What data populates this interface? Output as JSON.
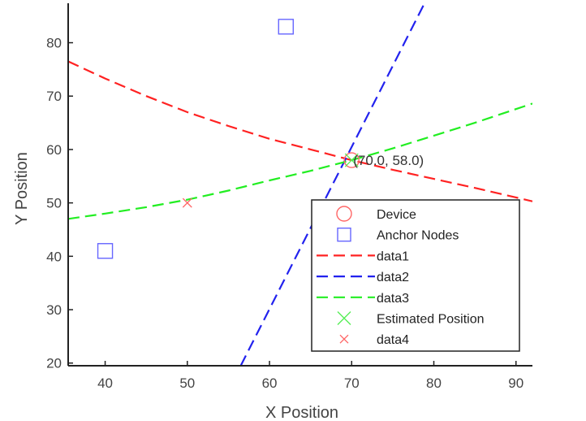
{
  "chart_data": {
    "type": "line",
    "xlabel": "X Position",
    "ylabel": "Y Position",
    "xlim": [
      35.5,
      92
    ],
    "ylim": [
      19.5,
      88
    ],
    "xticks": [
      40,
      50,
      60,
      70,
      80,
      90
    ],
    "yticks": [
      20,
      30,
      40,
      50,
      60,
      70,
      80
    ],
    "grid": false,
    "legend_placement": "bottom-right",
    "device": {
      "x": 70,
      "y": 58,
      "color": "#ff6666"
    },
    "anchors": {
      "color": "#6666ff",
      "points": [
        {
          "x": 40,
          "y": 41
        },
        {
          "x": 62,
          "y": 83
        }
      ]
    },
    "estimated_position": {
      "x": 70,
      "y": 58,
      "color": "#55ee55"
    },
    "data4_point": {
      "x": 50,
      "y": 50,
      "color": "#ff6666"
    },
    "series": [
      {
        "name": "data1",
        "color": "#ff2222",
        "x": [
          35.5,
          40,
          45,
          50,
          55,
          60,
          65,
          70,
          75,
          80,
          85,
          92
        ],
        "y": [
          76.5,
          73.3,
          70.0,
          67.0,
          64.4,
          62.0,
          60.0,
          58.0,
          56.2,
          54.5,
          52.8,
          50.3
        ]
      },
      {
        "name": "data2",
        "color": "#2222ee",
        "x": [
          56.5,
          79
        ],
        "y": [
          19.5,
          87.8
        ]
      },
      {
        "name": "data3",
        "color": "#22ee22",
        "x": [
          35.5,
          40,
          45,
          50,
          55,
          60,
          65,
          70,
          75,
          80,
          85,
          92
        ],
        "y": [
          47.0,
          48.0,
          49.2,
          50.6,
          52.3,
          54.2,
          56.0,
          58.0,
          60.2,
          62.6,
          65.0,
          68.6
        ]
      }
    ],
    "annotation": {
      "text": "(70.0, 58.0)",
      "x": 70,
      "y": 58
    },
    "legend": [
      "Device",
      "Anchor Nodes",
      "data1",
      "data2",
      "data3",
      "Estimated Position",
      "data4"
    ]
  }
}
